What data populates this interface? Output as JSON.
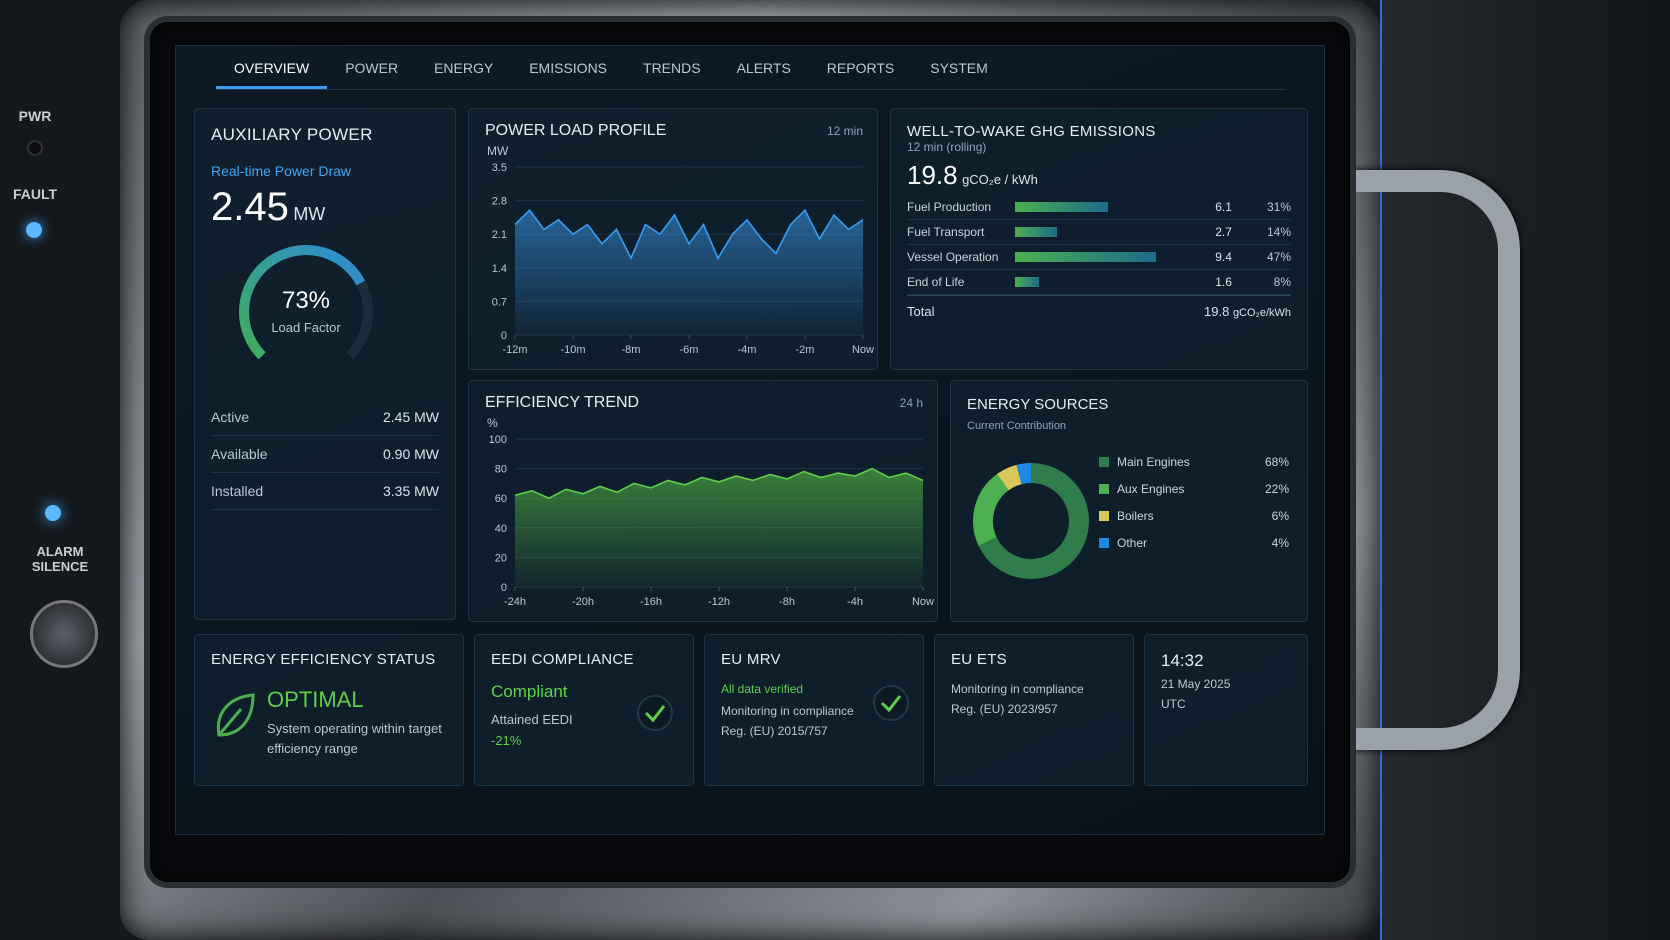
{
  "device": {
    "pwr": "PWR",
    "fault": "FAULT",
    "alarm": "ALARM SILENCE"
  },
  "tabs": [
    "OVERVIEW",
    "POWER",
    "ENERGY",
    "EMISSIONS",
    "TRENDS",
    "ALERTS",
    "REPORTS",
    "SYSTEM"
  ],
  "aux_power": {
    "title": "AUXILIARY POWER",
    "subtitle": "Real-time Power Draw",
    "value": 2.45,
    "unit": "MW",
    "load_factor": {
      "value": 73,
      "label": "73%",
      "caption": "Load Factor"
    },
    "stats": [
      {
        "label": "Active",
        "value": "2.45 MW"
      },
      {
        "label": "Available",
        "value": "0.90 MW"
      },
      {
        "label": "Installed",
        "value": "3.35 MW"
      }
    ]
  },
  "chart_data": [
    {
      "type": "line",
      "title": "POWER LOAD PROFILE",
      "subtitle": "12 min",
      "ylabel": "MW",
      "color": "#3b9cf0",
      "x": [
        -12,
        -11.5,
        -11,
        -10.5,
        -10,
        -9.5,
        -9,
        -8.5,
        -8,
        -7.5,
        -7,
        -6.5,
        -6,
        -5.5,
        -5,
        -4.5,
        -4,
        -3.5,
        -3,
        -2.5,
        -2,
        -1.5,
        -1,
        -0.5,
        0
      ],
      "values": [
        2.3,
        2.6,
        2.2,
        2.4,
        2.1,
        2.3,
        1.9,
        2.2,
        1.6,
        2.3,
        2.1,
        2.5,
        1.9,
        2.3,
        1.6,
        2.1,
        2.4,
        2.0,
        1.7,
        2.3,
        2.6,
        2.0,
        2.5,
        2.2,
        2.4
      ],
      "xlim": [
        -12,
        0
      ],
      "ylim": [
        0,
        3.5
      ],
      "yticks": [
        0,
        0.7,
        1.4,
        2.1,
        2.8,
        3.5
      ],
      "xticks": [
        {
          "value": -12,
          "label": "-12m"
        },
        {
          "value": -10,
          "label": "-10m"
        },
        {
          "value": -8,
          "label": "-8m"
        },
        {
          "value": -6,
          "label": "-6m"
        },
        {
          "value": -4,
          "label": "-4m"
        },
        {
          "value": -2,
          "label": "-2m"
        },
        {
          "value": 0,
          "label": "Now"
        }
      ],
      "grid": true
    },
    {
      "type": "line",
      "title": "EFFICIENCY TREND",
      "subtitle": "24 h",
      "ylabel": "%",
      "color": "#5fd04a",
      "x": [
        -24,
        -23,
        -22,
        -21,
        -20,
        -19,
        -18,
        -17,
        -16,
        -15,
        -14,
        -13,
        -12,
        -11,
        -10,
        -9,
        -8,
        -7,
        -6,
        -5,
        -4,
        -3,
        -2,
        -1,
        0
      ],
      "values": [
        62,
        65,
        60,
        66,
        63,
        68,
        64,
        70,
        67,
        72,
        69,
        74,
        71,
        75,
        72,
        76,
        73,
        78,
        74,
        77,
        75,
        80,
        74,
        77,
        72
      ],
      "xlim": [
        -24,
        0
      ],
      "ylim": [
        0,
        100
      ],
      "yticks": [
        0,
        20,
        40,
        60,
        80,
        100
      ],
      "xticks": [
        {
          "value": -24,
          "label": "-24h"
        },
        {
          "value": -20,
          "label": "-20h"
        },
        {
          "value": -16,
          "label": "-16h"
        },
        {
          "value": -12,
          "label": "-12h"
        },
        {
          "value": -8,
          "label": "-8h"
        },
        {
          "value": -4,
          "label": "-4h"
        },
        {
          "value": 0,
          "label": "Now"
        }
      ],
      "grid": true
    },
    {
      "type": "pie",
      "title": "ENERGY SOURCES",
      "subtitle": "Current Contribution",
      "categories": [
        "Main Engines",
        "Aux Engines",
        "Boilers",
        "Other"
      ],
      "values": [
        68,
        22,
        6,
        4
      ],
      "value_labels": [
        "68%",
        "22%",
        "6%",
        "4%"
      ],
      "colors": [
        "#2e7d4a",
        "#4caf50",
        "#d6c95a",
        "#1e88e5"
      ]
    }
  ],
  "emissions": {
    "title": "WELL-TO-WAKE GHG EMISSIONS",
    "subtitle": "12 min (rolling)",
    "value": 19.8,
    "unit": "gCO₂e / kWh",
    "rows": [
      {
        "name": "Fuel Production",
        "value": 6.1,
        "share": 31,
        "share_label": "31%"
      },
      {
        "name": "Fuel Transport",
        "value": 2.7,
        "share": 14,
        "share_label": "14%"
      },
      {
        "name": "Vessel Operation",
        "value": 9.4,
        "share": 47,
        "share_label": "47%"
      },
      {
        "name": "End of Life",
        "value": 1.6,
        "share": 8,
        "share_label": "8%"
      }
    ],
    "total": {
      "label": "Total",
      "value": 19.8,
      "unit": "gCO₂e/kWh"
    }
  },
  "status": {
    "efficiency": {
      "title": "ENERGY EFFICIENCY STATUS",
      "state": "OPTIMAL",
      "text": "System operating within target efficiency range"
    },
    "eedi": {
      "title": "EEDI COMPLIANCE",
      "state": "Compliant",
      "label": "Attained EEDI",
      "value": "-21%"
    },
    "mrv": {
      "title": "EU MRV",
      "state": "All data verified",
      "text": "Monitoring in compliance",
      "reg": "Reg. (EU) 2015/757"
    },
    "ets": {
      "title": "EU ETS",
      "text": "Monitoring in compliance",
      "reg": "Reg. (EU) 2023/957"
    },
    "clock": {
      "time": "14:32",
      "date": "21 May 2025",
      "zone": "UTC"
    }
  }
}
